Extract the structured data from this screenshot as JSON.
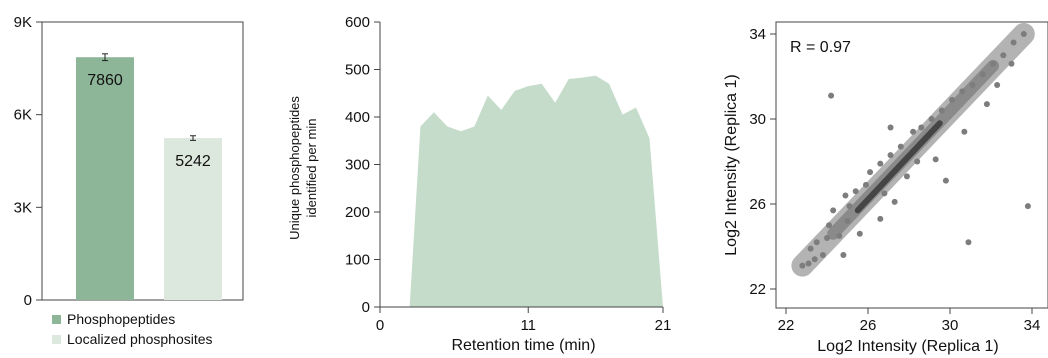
{
  "chart_data": [
    {
      "type": "bar",
      "categories": [
        "Phosphopeptides",
        "Localized phosphosites"
      ],
      "values": [
        7860,
        5242
      ],
      "errors": [
        110,
        75
      ],
      "data_labels": [
        "7860",
        "5242"
      ],
      "colors": [
        "#8db597",
        "#dce8de"
      ],
      "ylim": [
        0,
        9000
      ],
      "yticks": [
        0,
        3000,
        6000,
        9000
      ],
      "ytick_labels": [
        "0",
        "3K",
        "6K",
        "9K"
      ],
      "legend": {
        "placement": "bottom",
        "entries": [
          "Phosphopeptides",
          "Localized phosphosites"
        ]
      },
      "xlabel": "",
      "ylabel": "",
      "title": ""
    },
    {
      "type": "area",
      "x": [
        2.2,
        3,
        4,
        5,
        6,
        7,
        8,
        9,
        10,
        11,
        12,
        13,
        14,
        15,
        16,
        17,
        18,
        19,
        20,
        21
      ],
      "y": [
        0,
        380,
        410,
        380,
        370,
        380,
        445,
        415,
        455,
        465,
        470,
        430,
        480,
        483,
        487,
        470,
        405,
        420,
        355,
        0
      ],
      "color": "#c6dccb",
      "xlim": [
        0,
        21
      ],
      "ylim": [
        0,
        600
      ],
      "xticks": [
        0,
        11,
        21
      ],
      "yticks": [
        0,
        100,
        200,
        300,
        400,
        500,
        600
      ],
      "xlabel": "Retention time (min)",
      "ylabel_lines": [
        "Unique phosphopeptides",
        "identified per min"
      ],
      "title": ""
    },
    {
      "type": "scatter",
      "xlim": [
        22,
        34
      ],
      "ylim": [
        22,
        34
      ],
      "xticks": [
        22,
        26,
        30,
        34
      ],
      "yticks": [
        22,
        26,
        30,
        34
      ],
      "xlabel": "Log2 Intensity (Replica 1)",
      "ylabel": "Log2 Intensity (Replica 1)",
      "annotation": "R = 0.97",
      "point_color": "#7d7d7d",
      "trend": {
        "from": [
          22.8,
          23.1
        ],
        "to": [
          33.6,
          34.0
        ]
      },
      "points": [
        [
          22.8,
          23.1
        ],
        [
          23.1,
          23.2
        ],
        [
          23.4,
          23.4
        ],
        [
          23.8,
          23.6
        ],
        [
          23.5,
          24.2
        ],
        [
          23.2,
          23.9
        ],
        [
          24.0,
          24.4
        ],
        [
          24.6,
          24.5
        ],
        [
          25.0,
          25.2
        ],
        [
          24.3,
          25.7
        ],
        [
          24.9,
          26.4
        ],
        [
          25.4,
          26.6
        ],
        [
          25.1,
          25.9
        ],
        [
          25.9,
          26.9
        ],
        [
          26.1,
          27.5
        ],
        [
          26.6,
          27.9
        ],
        [
          27.1,
          28.3
        ],
        [
          27.6,
          28.7
        ],
        [
          26.8,
          26.5
        ],
        [
          27.9,
          27.3
        ],
        [
          28.4,
          28.0
        ],
        [
          28.6,
          29.6
        ],
        [
          29.1,
          30.0
        ],
        [
          29.6,
          30.4
        ],
        [
          30.1,
          30.9
        ],
        [
          30.6,
          31.3
        ],
        [
          31.1,
          31.6
        ],
        [
          31.6,
          32.1
        ],
        [
          32.1,
          32.6
        ],
        [
          32.6,
          33.0
        ],
        [
          33.1,
          33.6
        ],
        [
          33.6,
          34.0
        ],
        [
          24.2,
          31.1
        ],
        [
          27.1,
          29.6
        ],
        [
          30.9,
          24.2
        ],
        [
          33.8,
          25.9
        ],
        [
          29.8,
          27.1
        ],
        [
          24.8,
          23.6
        ],
        [
          26.6,
          25.3
        ],
        [
          31.8,
          30.7
        ],
        [
          32.3,
          31.6
        ],
        [
          28.2,
          29.4
        ],
        [
          30.7,
          29.4
        ],
        [
          27.3,
          26.1
        ],
        [
          25.6,
          24.6
        ],
        [
          33.0,
          32.6
        ],
        [
          29.3,
          28.1
        ],
        [
          24.1,
          25.0
        ]
      ]
    }
  ]
}
